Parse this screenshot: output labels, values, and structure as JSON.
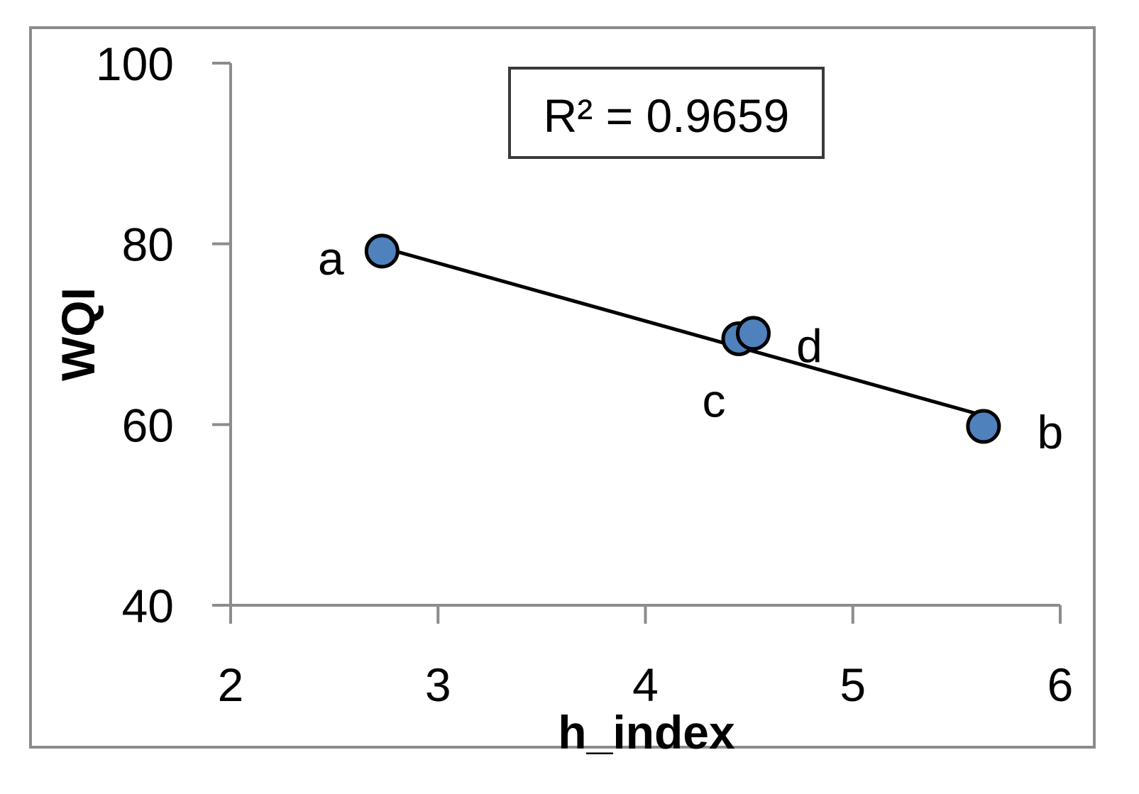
{
  "chart_data": {
    "type": "scatter",
    "xlabel": "h_index",
    "ylabel": "WQI",
    "xlim": [
      2,
      6
    ],
    "ylim": [
      40,
      100
    ],
    "x_ticks": [
      2,
      3,
      4,
      5,
      6
    ],
    "y_ticks": [
      40,
      60,
      80,
      100
    ],
    "grid": false,
    "legend": "none",
    "colors": {
      "marker_fill": "#4f81bd",
      "marker_stroke": "#000000",
      "axis": "#8c8c8c",
      "trendline": "#000000"
    },
    "points": [
      {
        "label": "a",
        "x": 2.73,
        "y": 79.2
      },
      {
        "label": "c",
        "x": 4.45,
        "y": 69.5
      },
      {
        "label": "d",
        "x": 4.52,
        "y": 70.1
      },
      {
        "label": "b",
        "x": 5.63,
        "y": 59.8
      }
    ],
    "trendline": {
      "type": "linear",
      "x": [
        2.73,
        5.63
      ],
      "y": [
        79.6,
        61.0
      ]
    },
    "annotation": "R² = 0.9659"
  }
}
